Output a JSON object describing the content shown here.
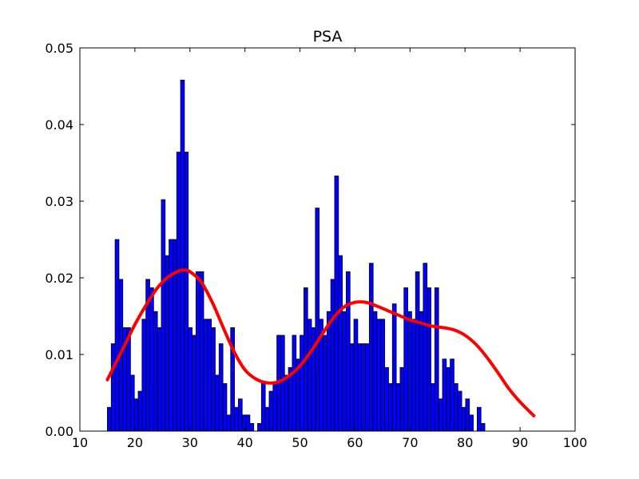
{
  "chart_data": {
    "type": "bar",
    "title": "PSA",
    "xlabel": "",
    "ylabel": "",
    "xlim": [
      10,
      100
    ],
    "ylim": [
      0,
      0.05
    ],
    "x_ticks": [
      10,
      20,
      30,
      40,
      50,
      60,
      70,
      80,
      90,
      100
    ],
    "x_tick_labels": [
      "10",
      "20",
      "30",
      "40",
      "50",
      "60",
      "70",
      "80",
      "90",
      "100"
    ],
    "y_ticks": [
      0.0,
      0.01,
      0.02,
      0.03,
      0.04,
      0.05
    ],
    "y_tick_labels": [
      "0.00",
      "0.01",
      "0.02",
      "0.03",
      "0.04",
      "0.05"
    ],
    "grid": false,
    "legend": "none",
    "histogram": {
      "bin_start": 15.0,
      "bin_width": 0.7,
      "values": [
        0.0031,
        0.0114,
        0.025,
        0.0198,
        0.0135,
        0.0135,
        0.0073,
        0.0042,
        0.0052,
        0.0146,
        0.0198,
        0.0187,
        0.0156,
        0.0135,
        0.0302,
        0.0229,
        0.025,
        0.025,
        0.0364,
        0.0458,
        0.0364,
        0.0135,
        0.0125,
        0.0208,
        0.0208,
        0.0146,
        0.0146,
        0.0135,
        0.0073,
        0.0114,
        0.0062,
        0.0021,
        0.0135,
        0.0031,
        0.0042,
        0.0021,
        0.0021,
        0.001,
        0.0,
        0.001,
        0.0062,
        0.0031,
        0.0052,
        0.0062,
        0.0125,
        0.0125,
        0.0073,
        0.0083,
        0.0125,
        0.0094,
        0.0125,
        0.0187,
        0.0146,
        0.0135,
        0.0291,
        0.0146,
        0.0125,
        0.0156,
        0.0198,
        0.0333,
        0.0229,
        0.0156,
        0.0208,
        0.0114,
        0.0146,
        0.0114,
        0.0114,
        0.0114,
        0.0219,
        0.0156,
        0.0146,
        0.0146,
        0.0083,
        0.0062,
        0.0166,
        0.0062,
        0.0083,
        0.0187,
        0.0156,
        0.0146,
        0.0208,
        0.0156,
        0.0219,
        0.0187,
        0.0062,
        0.0187,
        0.0042,
        0.0094,
        0.0083,
        0.0094,
        0.0062,
        0.0052,
        0.0031,
        0.0042,
        0.0021,
        0.0,
        0.0031,
        0.001
      ],
      "color": "#0000ff",
      "edge_color": "#000000"
    },
    "density_curve": {
      "color": "#ff0000",
      "x": [
        15,
        18,
        20,
        22,
        24,
        26,
        28,
        29,
        30,
        32,
        34,
        36,
        38,
        40,
        42,
        44,
        46,
        48,
        50,
        52,
        54,
        56,
        58,
        60,
        62,
        64,
        66,
        68,
        70,
        72,
        74,
        76,
        78,
        80,
        82,
        84,
        86,
        88,
        90,
        92.5
      ],
      "y": [
        0.0067,
        0.011,
        0.0139,
        0.0164,
        0.0186,
        0.0201,
        0.0209,
        0.021,
        0.0208,
        0.0195,
        0.0169,
        0.0136,
        0.0104,
        0.008,
        0.0068,
        0.0063,
        0.0064,
        0.0072,
        0.0085,
        0.0104,
        0.0126,
        0.0147,
        0.0162,
        0.0168,
        0.0168,
        0.0163,
        0.0157,
        0.0151,
        0.0145,
        0.0141,
        0.0137,
        0.0135,
        0.0132,
        0.0125,
        0.0113,
        0.0096,
        0.0076,
        0.0055,
        0.0038,
        0.002
      ]
    }
  }
}
